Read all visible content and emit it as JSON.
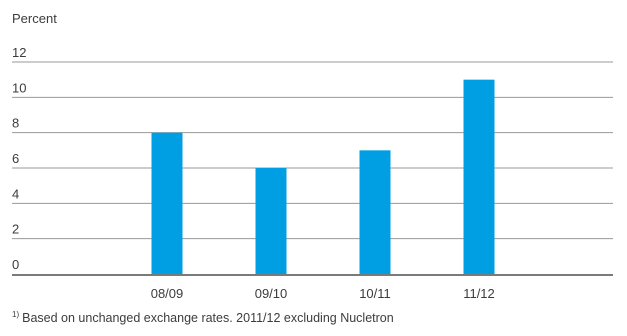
{
  "chart_data": {
    "type": "bar",
    "ylabel": "Percent",
    "categories": [
      "08/09",
      "09/10",
      "10/11",
      "11/12"
    ],
    "values": [
      8,
      6,
      7,
      11
    ],
    "ylim": [
      0,
      12
    ],
    "yticks": [
      0,
      2,
      4,
      6,
      8,
      10,
      12
    ],
    "grid": true,
    "bar_color": "#009fe3",
    "grid_color": "#9a9a9a",
    "axis_color": "#7a7a7a"
  },
  "footnote": {
    "marker": "1)",
    "text": "Based on unchanged exchange rates. 2011/12 excluding Nucletron"
  }
}
